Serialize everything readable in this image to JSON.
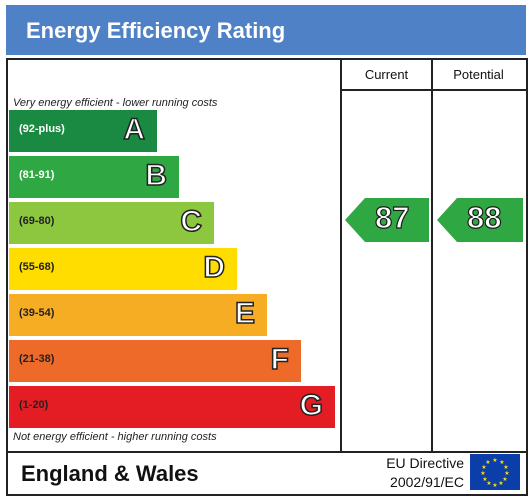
{
  "header": {
    "title": "Energy Efficiency Rating"
  },
  "columns": {
    "current": "Current",
    "potential": "Potential"
  },
  "notes": {
    "top": "Very energy efficient - lower running costs",
    "bottom": "Not energy efficient - higher running costs"
  },
  "chart_data": {
    "type": "bar",
    "categories": [
      "A",
      "B",
      "C",
      "D",
      "E",
      "F",
      "G"
    ],
    "bands": [
      {
        "letter": "A",
        "range": "(92-plus)",
        "color": "#1a8a43",
        "range_color": "#ffffff"
      },
      {
        "letter": "B",
        "range": "(81-91)",
        "color": "#2fa843",
        "range_color": "#ffffff"
      },
      {
        "letter": "C",
        "range": "(69-80)",
        "color": "#8dc63f",
        "range_color": "#222222"
      },
      {
        "letter": "D",
        "range": "(55-68)",
        "color": "#ffdd00",
        "range_color": "#222222"
      },
      {
        "letter": "E",
        "range": "(39-54)",
        "color": "#f6ad24",
        "range_color": "#222222"
      },
      {
        "letter": "F",
        "range": "(21-38)",
        "color": "#ee6a28",
        "range_color": "#222222"
      },
      {
        "letter": "G",
        "range": "(1-20)",
        "color": "#e31d23",
        "range_color": "#222222"
      }
    ],
    "current": {
      "value": "87",
      "band": "B",
      "color": "#2fa843"
    },
    "potential": {
      "value": "88",
      "band": "B",
      "color": "#2fa843"
    }
  },
  "footer": {
    "region": "England & Wales",
    "directive_line1": "EU Directive",
    "directive_line2": "2002/91/EC"
  }
}
